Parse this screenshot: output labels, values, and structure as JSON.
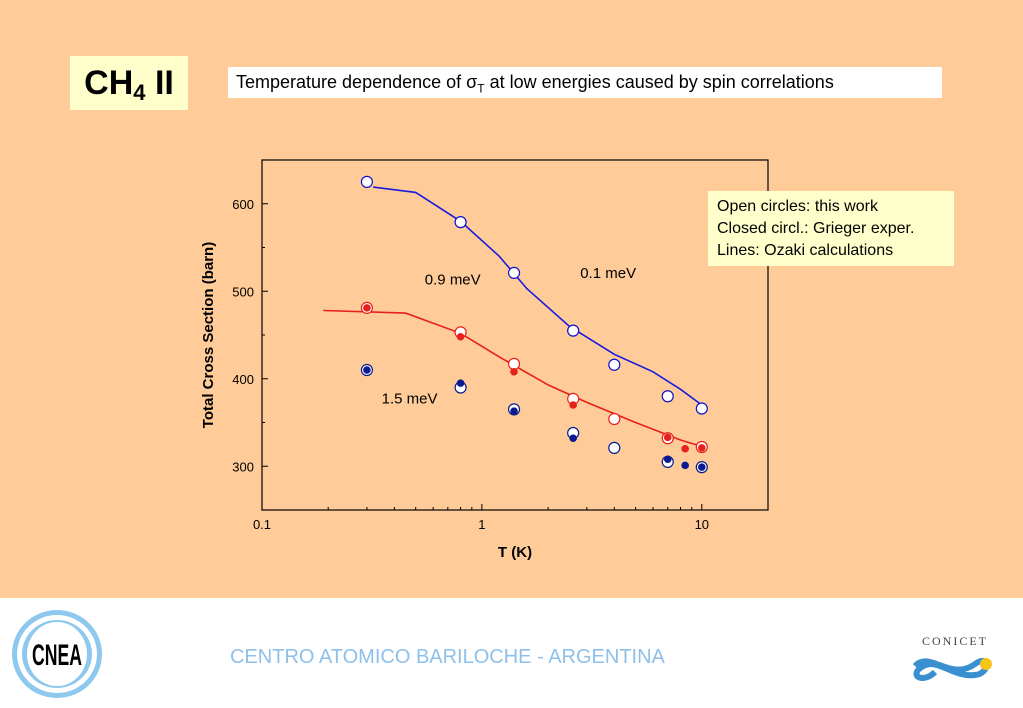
{
  "title": {
    "main": "CH",
    "sub": "4",
    "suffix": " II"
  },
  "subtitle": {
    "pre": "Temperature dependence of σ",
    "sub": "T",
    "post": " at low energies caused by spin correlations"
  },
  "legend_box": [
    "Open circles: this work",
    "Closed circl.: Grieger exper.",
    "Lines: Ozaki calculations"
  ],
  "footer": {
    "text": "CENTRO ATOMICO BARILOCHE - ARGENTINA",
    "left_logo": "CNEA",
    "right_logo": "CONICET"
  },
  "chart_data": {
    "type": "scatter",
    "xscale": "log",
    "xlabel": "T (K)",
    "ylabel": "Total Cross Section (barn)",
    "xlim": [
      0.1,
      20
    ],
    "ylim": [
      250,
      650
    ],
    "xticks": [
      {
        "v": 0.1,
        "label": "0.1"
      },
      {
        "v": 1,
        "label": "1"
      },
      {
        "v": 10,
        "label": "10"
      }
    ],
    "yticks": [
      {
        "v": 300,
        "label": "300"
      },
      {
        "v": 400,
        "label": "400"
      },
      {
        "v": 500,
        "label": "500"
      },
      {
        "v": 600,
        "label": "600"
      }
    ],
    "annotations": [
      {
        "text": "0.1 meV",
        "x": 2.8,
        "y": 515
      },
      {
        "text": "0.9 meV",
        "x": 0.55,
        "y": 508
      },
      {
        "text": "1.5 meV",
        "x": 0.35,
        "y": 372
      }
    ],
    "series": [
      {
        "name": "0.1 meV open",
        "kind": "open",
        "color": "#1010CC",
        "points": [
          [
            0.3,
            625
          ],
          [
            0.8,
            579
          ],
          [
            1.4,
            521
          ],
          [
            2.6,
            455
          ],
          [
            4,
            416
          ],
          [
            7,
            380
          ],
          [
            10,
            366
          ]
        ]
      },
      {
        "name": "0.9 meV open",
        "kind": "open",
        "color": "#E8201A",
        "points": [
          [
            0.3,
            481
          ],
          [
            0.8,
            453
          ],
          [
            1.4,
            417
          ],
          [
            2.6,
            377
          ],
          [
            4,
            354
          ],
          [
            7,
            332
          ],
          [
            10,
            322
          ]
        ]
      },
      {
        "name": "0.9 meV closed",
        "kind": "closed",
        "color": "#E8201A",
        "points": [
          [
            0.3,
            481
          ],
          [
            0.8,
            448
          ],
          [
            1.4,
            408
          ],
          [
            2.6,
            370
          ],
          [
            7,
            333
          ],
          [
            8.4,
            320
          ],
          [
            10,
            321
          ]
        ]
      },
      {
        "name": "1.5 meV open",
        "kind": "open",
        "color": "#0A1A90",
        "points": [
          [
            0.3,
            410
          ],
          [
            0.8,
            390
          ],
          [
            1.4,
            365
          ],
          [
            2.6,
            338
          ],
          [
            4,
            321
          ],
          [
            7,
            305
          ],
          [
            10,
            299
          ]
        ]
      },
      {
        "name": "1.5 meV closed",
        "kind": "closed",
        "color": "#0A1A90",
        "points": [
          [
            0.3,
            410
          ],
          [
            0.8,
            395
          ],
          [
            1.4,
            363
          ],
          [
            2.6,
            332
          ],
          [
            7,
            308
          ],
          [
            8.4,
            301
          ],
          [
            10,
            299
          ]
        ]
      }
    ],
    "lines": [
      {
        "name": "0.1 meV calc",
        "color": "#1A1AE0",
        "points": [
          [
            0.32,
            619
          ],
          [
            0.5,
            613
          ],
          [
            0.8,
            580
          ],
          [
            1.2,
            540
          ],
          [
            1.6,
            503
          ],
          [
            2.5,
            460
          ],
          [
            4,
            428
          ],
          [
            6,
            408
          ],
          [
            8,
            388
          ],
          [
            10,
            370
          ]
        ]
      },
      {
        "name": "0.9 meV calc",
        "color": "#E8201A",
        "points": [
          [
            0.19,
            478
          ],
          [
            0.45,
            475
          ],
          [
            0.8,
            452
          ],
          [
            1.2,
            425
          ],
          [
            2,
            393
          ],
          [
            3,
            373
          ],
          [
            5,
            350
          ],
          [
            8,
            330
          ],
          [
            10.5,
            321
          ]
        ]
      }
    ]
  }
}
